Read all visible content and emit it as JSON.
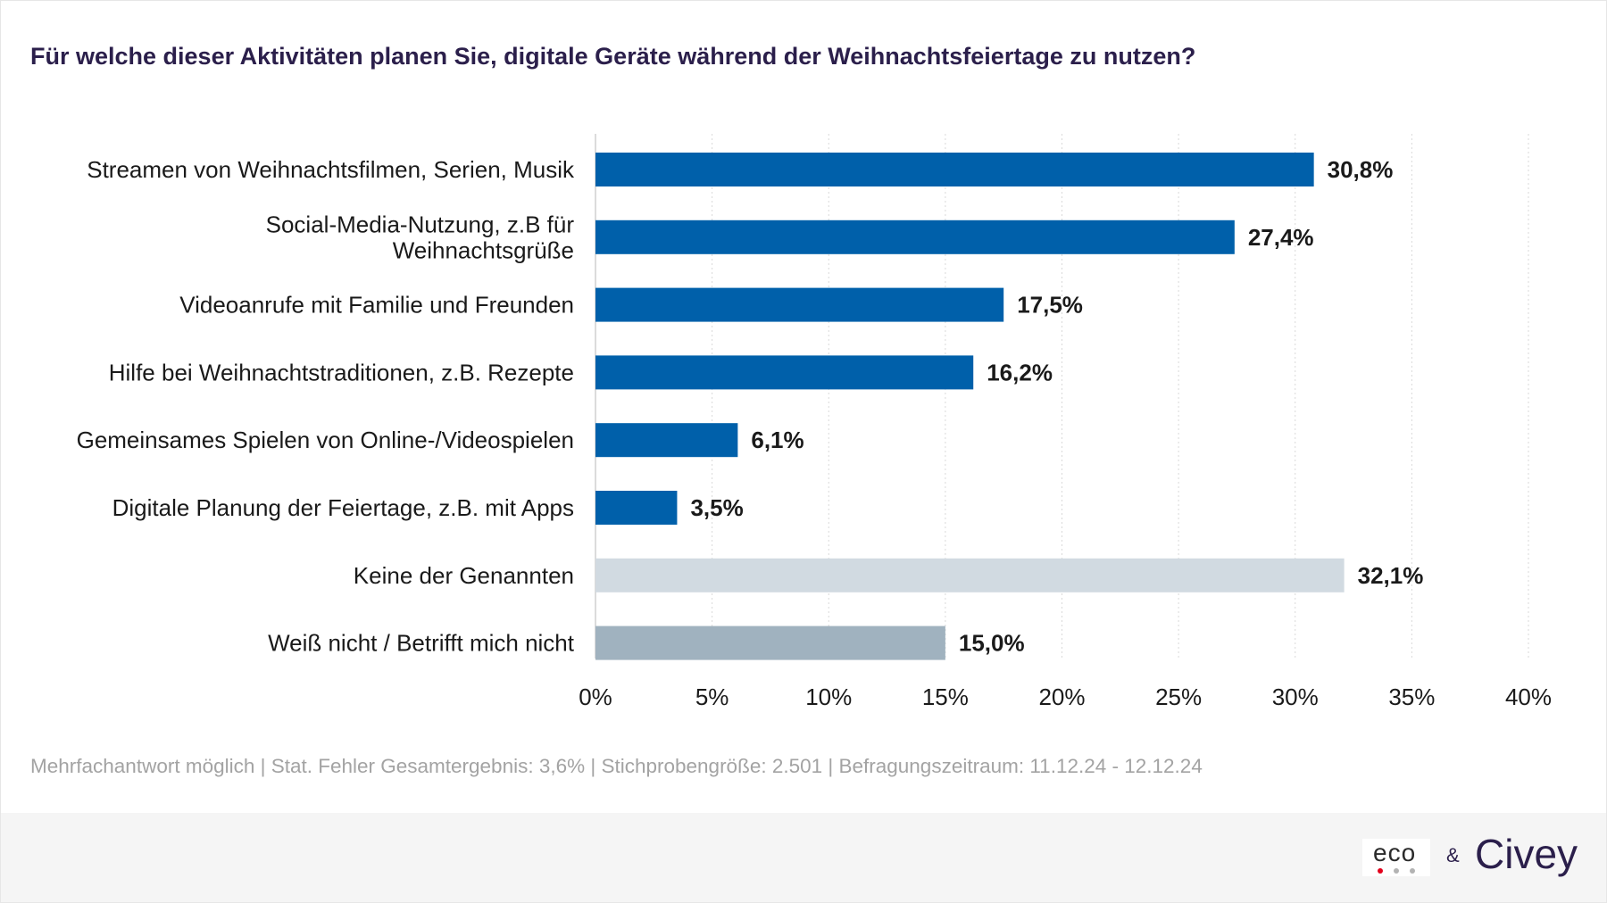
{
  "header": {
    "title": "Für welche dieser Aktivitäten planen Sie, digitale Geräte während der Weihnachtsfeiertage zu nutzen?"
  },
  "chart_data": {
    "type": "bar",
    "orientation": "horizontal",
    "title": "Für welche dieser Aktivitäten planen Sie, digitale Geräte während der Weihnachtsfeiertage zu nutzen?",
    "categories": [
      [
        "Streamen von Weihnachtsfilmen, Serien, Musik"
      ],
      [
        "Social-Media-Nutzung, z.B für",
        "Weihnachtsgrüße"
      ],
      [
        "Videoanrufe mit Familie und Freunden"
      ],
      [
        "Hilfe bei Weihnachtstraditionen, z.B. Rezepte"
      ],
      [
        "Gemeinsames Spielen von Online-/Videospielen"
      ],
      [
        "Digitale Planung der Feiertage, z.B. mit Apps"
      ],
      [
        "Keine der Genannten"
      ],
      [
        "Weiß nicht / Betrifft mich nicht"
      ]
    ],
    "values": [
      30.8,
      27.4,
      17.5,
      16.2,
      6.1,
      3.5,
      32.1,
      15.0
    ],
    "value_labels": [
      "30,8%",
      "27,4%",
      "17,5%",
      "16,2%",
      "6,1%",
      "3,5%",
      "32,1%",
      "15,0%"
    ],
    "bar_colors": [
      "#0060aa",
      "#0060aa",
      "#0060aa",
      "#0060aa",
      "#0060aa",
      "#0060aa",
      "#d1dae1",
      "#a0b2bf"
    ],
    "xlim": [
      0,
      40
    ],
    "xticks": [
      0,
      5,
      10,
      15,
      20,
      25,
      30,
      35,
      40
    ],
    "xtick_labels": [
      "0%",
      "5%",
      "10%",
      "15%",
      "20%",
      "25%",
      "30%",
      "35%",
      "40%"
    ],
    "grid": "vertical dotted",
    "xlabel": "",
    "ylabel": ""
  },
  "note": "Mehrfachantwort möglich | Stat. Fehler Gesamtergebnis: 3,6% | Stichprobengröße: 2.501 | Befragungszeitraum: 11.12.24 - 12.12.24",
  "footer": {
    "logo_eco": "eco",
    "amp": "&",
    "logo_civey": "Civey",
    "dot_colors": [
      "#e3001b",
      "#b3b3b3",
      "#b3b3b3"
    ]
  }
}
